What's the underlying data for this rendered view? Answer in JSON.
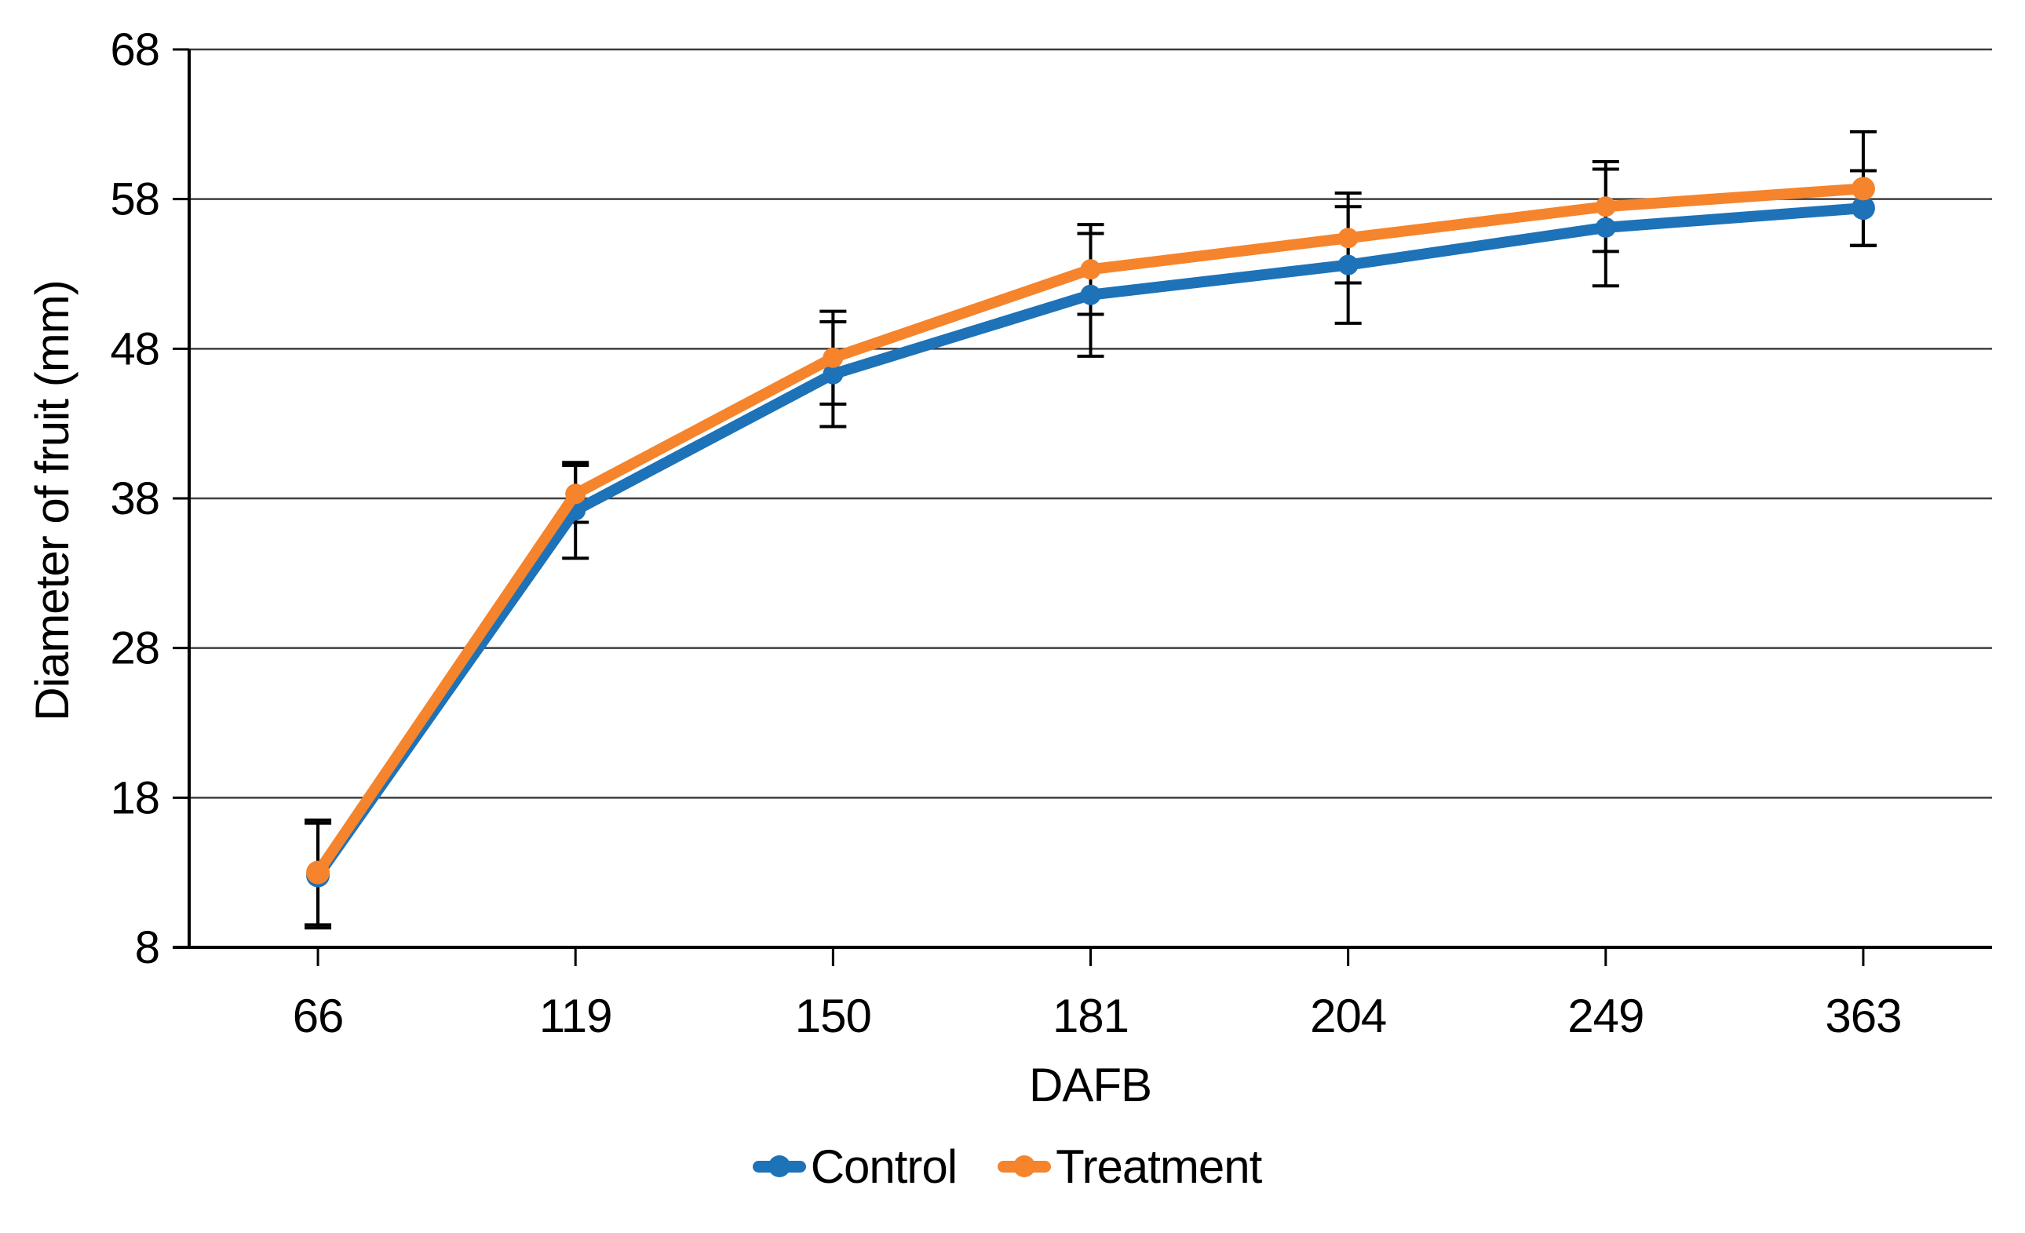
{
  "background": "#ffffff",
  "chart_data": {
    "type": "line",
    "title": "",
    "xlabel": "DAFB",
    "ylabel": "Diameter of fruit (mm)",
    "categories": [
      66,
      119,
      150,
      181,
      204,
      249,
      363
    ],
    "y_axis": {
      "min": 8,
      "max": 68,
      "step": 10,
      "ticks": [
        8,
        18,
        28,
        38,
        48,
        58,
        68
      ]
    },
    "grid": true,
    "legend_position": "bottom",
    "error_bars": true,
    "series": [
      {
        "name": "Control",
        "color": "#1d72b8",
        "values": [
          12.8,
          37.2,
          46.3,
          51.6,
          53.6,
          56.1,
          57.4
        ],
        "errors": [
          3.5,
          3.2,
          3.5,
          4.1,
          3.9,
          3.9,
          2.5
        ]
      },
      {
        "name": "Treatment",
        "color": "#f5842c",
        "values": [
          13.0,
          38.3,
          47.4,
          53.3,
          55.4,
          57.5,
          58.7
        ],
        "errors": [
          3.5,
          1.9,
          3.1,
          3.0,
          3.0,
          3.0,
          3.8
        ]
      }
    ],
    "axis_color": "#000000",
    "gridline_color": "#3f3f3f",
    "error_bar_color": "#000000"
  }
}
